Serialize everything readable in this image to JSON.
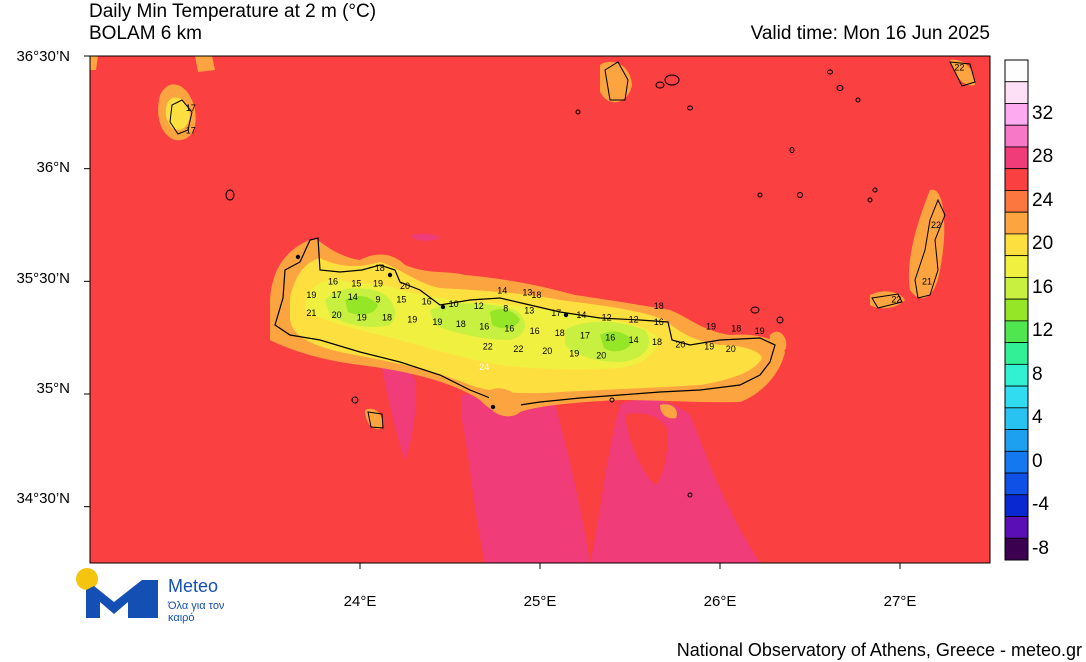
{
  "header": {
    "title": "Daily Min Temperature at 2 m (°C)",
    "model": "BOLAM 6 km",
    "valid_time": "Valid time: Mon 16 Jun 2025"
  },
  "axes": {
    "lat_labels": [
      "36°30’N",
      "36°N",
      "35°30’N",
      "35°N",
      "34°30’N"
    ],
    "lon_labels": [
      "24°E",
      "25°E",
      "26°E",
      "27°E"
    ],
    "lat_values": [
      36.5,
      36.0,
      35.5,
      35.0,
      34.5
    ],
    "lon_values": [
      24,
      25,
      26,
      27
    ],
    "lon_range": [
      22.5,
      27.5
    ],
    "lat_range": [
      34.25,
      36.5
    ]
  },
  "colorbar": {
    "labels": [
      "32",
      "28",
      "24",
      "20",
      "16",
      "12",
      "8",
      "4",
      "0",
      "-4",
      "-8"
    ],
    "colors": [
      "#fefefe",
      "#fde0f5",
      "#fdaaf0",
      "#f878c8",
      "#f03c78",
      "#fa4040",
      "#fa7840",
      "#fca440",
      "#fde040",
      "#f0f040",
      "#c8f040",
      "#96e628",
      "#50e650",
      "#32f096",
      "#32f0d2",
      "#32dcf0",
      "#28c3f0",
      "#1ea0f0",
      "#1478f0",
      "#0f50e6",
      "#0a28d2",
      "#5a0fb4",
      "#3c0050"
    ]
  },
  "map": {
    "sea_color": "#fa4040",
    "warm_sea_color": "#f03c78",
    "coast_color": "#fca440",
    "temp_labels": [
      {
        "v": "19",
        "lon": 23.73,
        "lat": 35.44
      },
      {
        "v": "17",
        "lon": 23.87,
        "lat": 35.44
      },
      {
        "v": "14",
        "lon": 23.96,
        "lat": 35.43
      },
      {
        "v": "9",
        "lon": 24.1,
        "lat": 35.42
      },
      {
        "v": "15",
        "lon": 24.23,
        "lat": 35.42
      },
      {
        "v": "16",
        "lon": 24.37,
        "lat": 35.41
      },
      {
        "v": "10",
        "lon": 24.52,
        "lat": 35.4
      },
      {
        "v": "12",
        "lon": 24.66,
        "lat": 35.39
      },
      {
        "v": "8",
        "lon": 24.81,
        "lat": 35.38
      },
      {
        "v": "13",
        "lon": 24.94,
        "lat": 35.37
      },
      {
        "v": "17",
        "lon": 25.09,
        "lat": 35.36
      },
      {
        "v": "14",
        "lon": 25.23,
        "lat": 35.35
      },
      {
        "v": "12",
        "lon": 25.37,
        "lat": 35.34
      },
      {
        "v": "12",
        "lon": 25.52,
        "lat": 35.33
      },
      {
        "v": "16",
        "lon": 25.66,
        "lat": 35.32
      },
      {
        "v": "16",
        "lon": 23.85,
        "lat": 35.5
      },
      {
        "v": "15",
        "lon": 23.98,
        "lat": 35.49
      },
      {
        "v": "19",
        "lon": 24.1,
        "lat": 35.49
      },
      {
        "v": "20",
        "lon": 24.25,
        "lat": 35.48
      },
      {
        "v": "18",
        "lon": 24.11,
        "lat": 35.56
      },
      {
        "v": "14",
        "lon": 24.79,
        "lat": 35.46
      },
      {
        "v": "13",
        "lon": 24.93,
        "lat": 35.45
      },
      {
        "v": "18",
        "lon": 24.98,
        "lat": 35.44
      },
      {
        "v": "18",
        "lon": 25.66,
        "lat": 35.39
      },
      {
        "v": "21",
        "lon": 23.73,
        "lat": 35.36
      },
      {
        "v": "20",
        "lon": 23.87,
        "lat": 35.35
      },
      {
        "v": "19",
        "lon": 24.01,
        "lat": 35.34
      },
      {
        "v": "18",
        "lon": 24.15,
        "lat": 35.34
      },
      {
        "v": "19",
        "lon": 24.29,
        "lat": 35.33
      },
      {
        "v": "19",
        "lon": 24.43,
        "lat": 35.32
      },
      {
        "v": "18",
        "lon": 24.56,
        "lat": 35.31
      },
      {
        "v": "16",
        "lon": 24.69,
        "lat": 35.3
      },
      {
        "v": "16",
        "lon": 24.83,
        "lat": 35.29
      },
      {
        "v": "16",
        "lon": 24.97,
        "lat": 35.28
      },
      {
        "v": "18",
        "lon": 25.11,
        "lat": 35.27
      },
      {
        "v": "17",
        "lon": 25.25,
        "lat": 35.26
      },
      {
        "v": "16",
        "lon": 25.39,
        "lat": 35.25
      },
      {
        "v": "14",
        "lon": 25.52,
        "lat": 35.24
      },
      {
        "v": "18",
        "lon": 25.65,
        "lat": 35.23
      },
      {
        "v": "20",
        "lon": 25.78,
        "lat": 35.22
      },
      {
        "v": "19",
        "lon": 25.95,
        "lat": 35.3
      },
      {
        "v": "18",
        "lon": 26.09,
        "lat": 35.29
      },
      {
        "v": "19",
        "lon": 26.22,
        "lat": 35.28
      },
      {
        "v": "19",
        "lon": 25.94,
        "lat": 35.21
      },
      {
        "v": "20",
        "lon": 26.06,
        "lat": 35.2
      },
      {
        "v": "22",
        "lon": 24.71,
        "lat": 35.21
      },
      {
        "v": "22",
        "lon": 24.88,
        "lat": 35.2
      },
      {
        "v": "20",
        "lon": 25.04,
        "lat": 35.19
      },
      {
        "v": "19",
        "lon": 25.19,
        "lat": 35.18
      },
      {
        "v": "20",
        "lon": 25.34,
        "lat": 35.17
      },
      {
        "v": "24",
        "lon": 24.69,
        "lat": 35.12
      },
      {
        "v": "17",
        "lon": 23.06,
        "lat": 36.27
      },
      {
        "v": "17",
        "lon": 23.06,
        "lat": 36.17
      },
      {
        "v": "22",
        "lon": 27.2,
        "lat": 35.75
      },
      {
        "v": "21",
        "lon": 27.15,
        "lat": 35.5
      },
      {
        "v": "22",
        "lon": 26.98,
        "lat": 35.42
      },
      {
        "v": "22",
        "lon": 27.33,
        "lat": 36.45
      }
    ]
  },
  "logo": {
    "name": "Meteo",
    "tagline": "Όλα για τον καιρό"
  },
  "footer": "National Observatory of Athens, Greece - meteo.gr"
}
